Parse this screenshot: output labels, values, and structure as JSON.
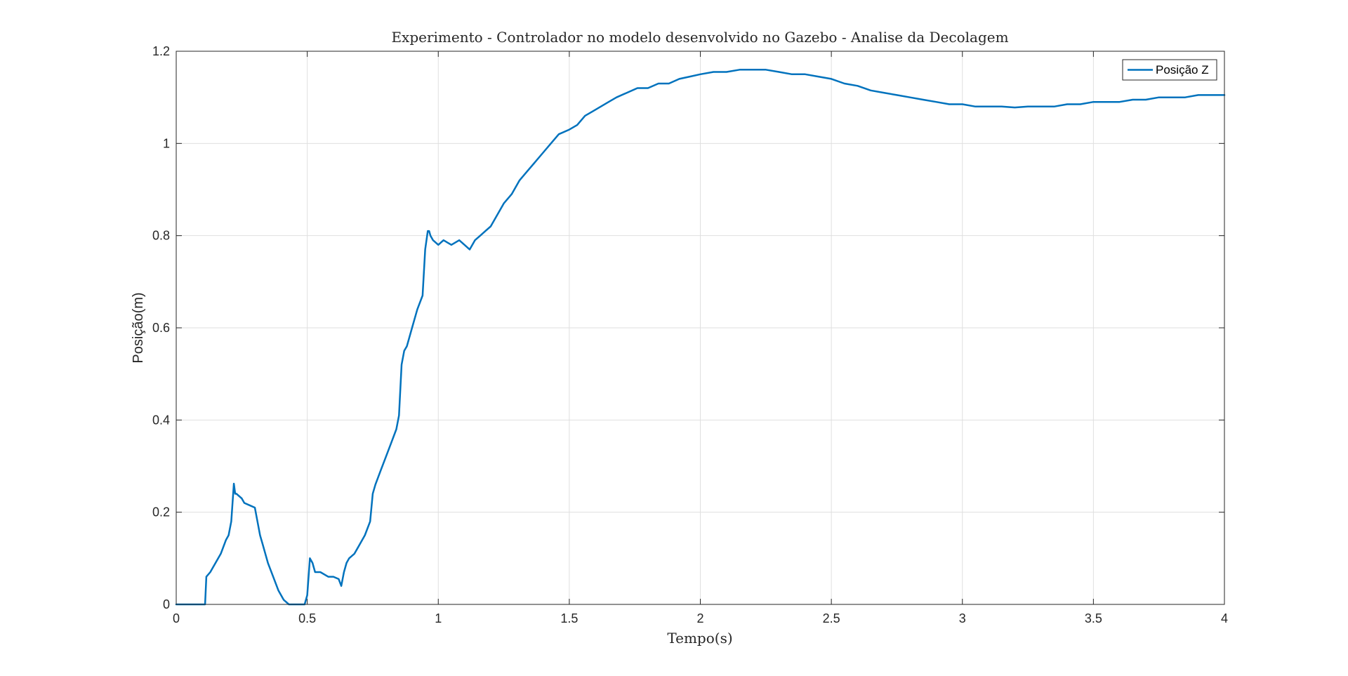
{
  "chart_data": {
    "type": "line",
    "title": "Experimento - Controlador no modelo desenvolvido no Gazebo - Analise da Decolagem",
    "xlabel": "Tempo(s)",
    "ylabel": "Posição(m)",
    "xlim": [
      0,
      4
    ],
    "ylim": [
      0,
      1.2
    ],
    "xticks": [
      0,
      0.5,
      1,
      1.5,
      2,
      2.5,
      3,
      3.5,
      4
    ],
    "xtick_labels": [
      "0",
      "0.5",
      "1",
      "1.5",
      "2",
      "2.5",
      "3",
      "3.5",
      "4"
    ],
    "yticks": [
      0,
      0.2,
      0.4,
      0.6,
      0.8,
      1,
      1.2
    ],
    "ytick_labels": [
      "0",
      "0.2",
      "0.4",
      "0.6",
      "0.8",
      "1",
      "1.2"
    ],
    "grid": true,
    "legend_position": "top-right",
    "series": [
      {
        "name": "Posição Z",
        "color": "#0072BD",
        "x": [
          0,
          0.11,
          0.115,
          0.13,
          0.15,
          0.17,
          0.19,
          0.2,
          0.21,
          0.22,
          0.225,
          0.23,
          0.25,
          0.26,
          0.28,
          0.3,
          0.31,
          0.32,
          0.33,
          0.35,
          0.37,
          0.39,
          0.41,
          0.43,
          0.44,
          0.45,
          0.49,
          0.5,
          0.51,
          0.52,
          0.53,
          0.55,
          0.58,
          0.6,
          0.62,
          0.63,
          0.64,
          0.65,
          0.66,
          0.68,
          0.7,
          0.72,
          0.74,
          0.75,
          0.76,
          0.78,
          0.8,
          0.82,
          0.84,
          0.85,
          0.86,
          0.87,
          0.88,
          0.9,
          0.92,
          0.94,
          0.95,
          0.96,
          0.965,
          0.97,
          0.98,
          1.0,
          1.02,
          1.05,
          1.08,
          1.1,
          1.12,
          1.14,
          1.16,
          1.18,
          1.2,
          1.22,
          1.25,
          1.28,
          1.31,
          1.34,
          1.37,
          1.4,
          1.43,
          1.46,
          1.5,
          1.53,
          1.56,
          1.59,
          1.62,
          1.65,
          1.68,
          1.72,
          1.76,
          1.8,
          1.84,
          1.88,
          1.92,
          1.96,
          2.0,
          2.05,
          2.1,
          2.15,
          2.2,
          2.25,
          2.3,
          2.35,
          2.4,
          2.45,
          2.5,
          2.55,
          2.6,
          2.65,
          2.7,
          2.75,
          2.8,
          2.85,
          2.9,
          2.95,
          3.0,
          3.05,
          3.1,
          3.15,
          3.2,
          3.25,
          3.3,
          3.35,
          3.4,
          3.45,
          3.5,
          3.55,
          3.6,
          3.65,
          3.7,
          3.75,
          3.8,
          3.85,
          3.9,
          3.95,
          4.0
        ],
        "values": [
          0,
          0,
          0.06,
          0.07,
          0.09,
          0.11,
          0.14,
          0.15,
          0.18,
          0.262,
          0.24,
          0.24,
          0.23,
          0.22,
          0.215,
          0.21,
          0.18,
          0.15,
          0.13,
          0.09,
          0.06,
          0.03,
          0.01,
          0.0,
          0.0,
          0.0,
          0.0,
          0.02,
          0.1,
          0.09,
          0.07,
          0.07,
          0.06,
          0.06,
          0.055,
          0.04,
          0.07,
          0.09,
          0.1,
          0.11,
          0.13,
          0.15,
          0.18,
          0.24,
          0.26,
          0.29,
          0.32,
          0.35,
          0.38,
          0.41,
          0.52,
          0.55,
          0.56,
          0.6,
          0.64,
          0.67,
          0.77,
          0.81,
          0.81,
          0.8,
          0.79,
          0.78,
          0.79,
          0.78,
          0.79,
          0.78,
          0.77,
          0.79,
          0.8,
          0.81,
          0.82,
          0.84,
          0.87,
          0.89,
          0.92,
          0.94,
          0.96,
          0.98,
          1.0,
          1.02,
          1.03,
          1.04,
          1.06,
          1.07,
          1.08,
          1.09,
          1.1,
          1.11,
          1.12,
          1.12,
          1.13,
          1.13,
          1.14,
          1.145,
          1.15,
          1.155,
          1.155,
          1.16,
          1.16,
          1.16,
          1.155,
          1.15,
          1.15,
          1.145,
          1.14,
          1.13,
          1.125,
          1.115,
          1.11,
          1.105,
          1.1,
          1.095,
          1.09,
          1.085,
          1.085,
          1.08,
          1.08,
          1.08,
          1.078,
          1.08,
          1.08,
          1.08,
          1.085,
          1.085,
          1.09,
          1.09,
          1.09,
          1.095,
          1.095,
          1.1,
          1.1,
          1.1,
          1.105,
          1.105,
          1.105
        ]
      }
    ]
  }
}
